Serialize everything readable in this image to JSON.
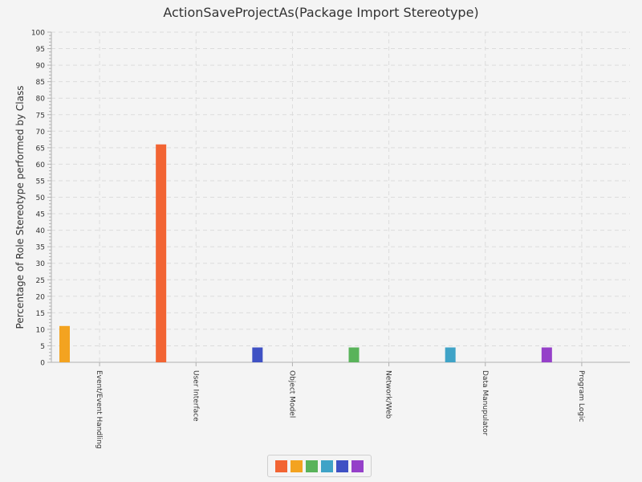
{
  "chart_data": {
    "type": "bar",
    "title": "ActionSaveProjectAs(Package Import Stereotype)",
    "xlabel": "",
    "ylabel": "Percentage of Role Stereotype performed by Class",
    "categories": [
      "Event/Event Handling",
      "User Interface",
      "Object Model",
      "Network/Web",
      "Data Manupulator",
      "Program Logic"
    ],
    "ylim": [
      0,
      100
    ],
    "ytick_step": 5,
    "grid": true,
    "legend_position": "bottom-center",
    "bars": [
      {
        "category": "Event/Event Handling",
        "value": 11,
        "color": "#f3a320"
      },
      {
        "category": "User Interface",
        "value": 66,
        "color": "#f26433"
      },
      {
        "category": "Object Model",
        "value": 4.5,
        "color": "#3f51c4"
      },
      {
        "category": "Network/Web",
        "value": 4.5,
        "color": "#59b35a"
      },
      {
        "category": "Data Manupulator",
        "value": 4.5,
        "color": "#3fa3c7"
      },
      {
        "category": "Program Logic",
        "value": 4.5,
        "color": "#9540c9"
      }
    ],
    "legend_colors": [
      "#f26433",
      "#f3a320",
      "#59b35a",
      "#3fa3c7",
      "#3f51c4",
      "#9540c9"
    ]
  }
}
